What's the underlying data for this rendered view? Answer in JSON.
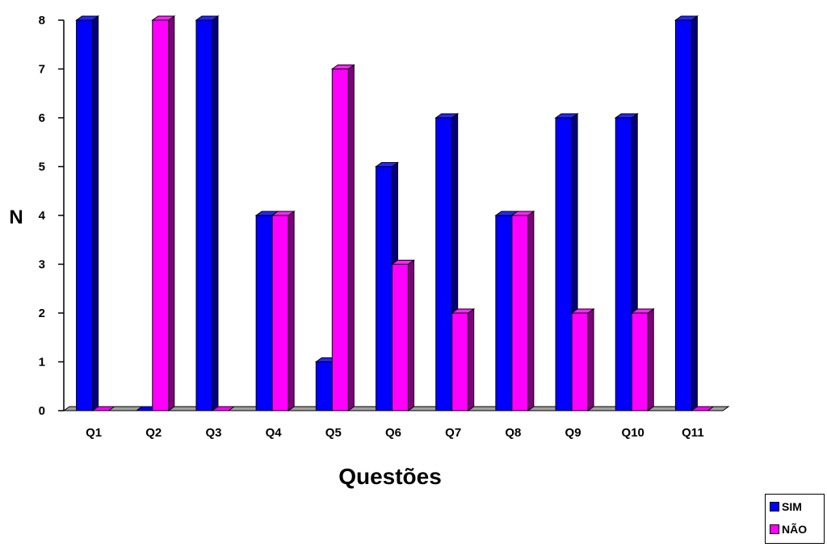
{
  "chart_data": {
    "type": "bar",
    "style": "3d-clustered",
    "categories": [
      "Q1",
      "Q2",
      "Q3",
      "Q4",
      "Q5",
      "Q6",
      "Q7",
      "Q8",
      "Q9",
      "Q10",
      "Q11"
    ],
    "series": [
      {
        "name": "SIM",
        "color": "#0000FF",
        "values": [
          8,
          0,
          8,
          4,
          1,
          5,
          6,
          4,
          6,
          6,
          8
        ]
      },
      {
        "name": "NÃO",
        "color": "#FF00FF",
        "values": [
          0,
          8,
          0,
          4,
          7,
          3,
          2,
          4,
          2,
          2,
          0
        ]
      }
    ],
    "xlabel": "Questões",
    "ylabel": "N",
    "ylim": [
      0,
      8
    ],
    "yticks": [
      "0",
      "1",
      "2",
      "3",
      "4",
      "5",
      "6",
      "7",
      "8"
    ],
    "grid": false,
    "legend_position": "bottom-right",
    "floor_color": "#A0A0A0"
  }
}
